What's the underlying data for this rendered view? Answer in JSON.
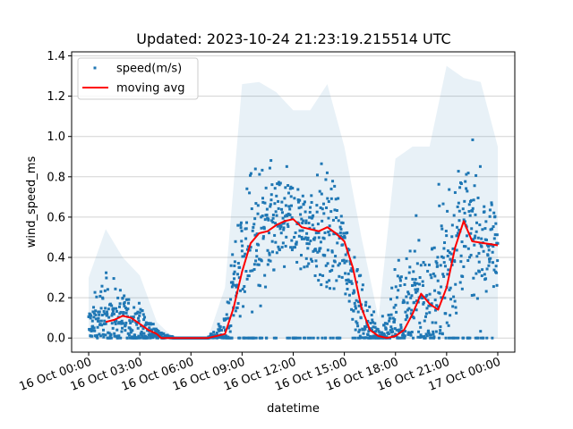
{
  "chart_data": {
    "type": "scatter",
    "title": "Updated: 2023-10-24 21:23:19.215514 UTC",
    "xlabel": "datetime",
    "ylabel": "wind_speed_ms",
    "xlim": [
      "2023-10-15T23:00:00",
      "2023-10-17T01:00:00"
    ],
    "ylim": [
      -0.07,
      1.42
    ],
    "x_ticks": [
      "2023-10-16T00:00:00",
      "2023-10-16T03:00:00",
      "2023-10-16T06:00:00",
      "2023-10-16T09:00:00",
      "2023-10-16T12:00:00",
      "2023-10-16T15:00:00",
      "2023-10-16T18:00:00",
      "2023-10-16T21:00:00",
      "2023-10-17T00:00:00"
    ],
    "x_tick_labels": [
      "16 Oct 00:00",
      "16 Oct 03:00",
      "16 Oct 06:00",
      "16 Oct 09:00",
      "16 Oct 12:00",
      "16 Oct 15:00",
      "16 Oct 18:00",
      "16 Oct 21:00",
      "17 Oct 00:00"
    ],
    "y_ticks": [
      0.0,
      0.2,
      0.4,
      0.6,
      0.8,
      1.0,
      1.2,
      1.4
    ],
    "y_tick_labels": [
      "0.0",
      "0.2",
      "0.4",
      "0.6",
      "0.8",
      "1.0",
      "1.2",
      "1.4"
    ],
    "grid": "horizontal",
    "legend_position": "upper-left",
    "series": [
      {
        "name": "speed(m/s)",
        "kind": "scatter",
        "color": "#1f77b4",
        "x": [
          "2023-10-16T00:00:00",
          "2023-10-16T01:00:00",
          "2023-10-16T02:00:00",
          "2023-10-16T03:00:00",
          "2023-10-16T04:00:00",
          "2023-10-16T05:00:00",
          "2023-10-16T06:00:00",
          "2023-10-16T07:00:00",
          "2023-10-16T08:00:00",
          "2023-10-16T09:00:00",
          "2023-10-16T10:00:00",
          "2023-10-16T11:00:00",
          "2023-10-16T12:00:00",
          "2023-10-16T13:00:00",
          "2023-10-16T14:00:00",
          "2023-10-16T15:00:00",
          "2023-10-16T16:00:00",
          "2023-10-16T17:00:00",
          "2023-10-16T18:00:00",
          "2023-10-16T19:00:00",
          "2023-10-16T20:00:00",
          "2023-10-16T21:00:00",
          "2023-10-16T22:00:00",
          "2023-10-16T23:00:00",
          "2023-10-17T00:00:00"
        ],
        "y": [
          0.05,
          0.12,
          0.1,
          0.06,
          0.02,
          0.0,
          0.0,
          0.0,
          0.02,
          0.4,
          0.5,
          0.55,
          0.58,
          0.54,
          0.52,
          0.45,
          0.1,
          0.01,
          0.05,
          0.22,
          0.15,
          0.38,
          0.55,
          0.47,
          0.45
        ],
        "y_min": [
          0.0,
          0.0,
          0.0,
          0.0,
          0.0,
          0.0,
          0.0,
          0.0,
          0.0,
          0.0,
          0.0,
          0.0,
          0.0,
          0.0,
          0.0,
          0.0,
          0.0,
          0.0,
          0.0,
          0.0,
          0.0,
          0.0,
          0.0,
          0.0,
          0.0
        ],
        "y_max": [
          0.3,
          0.54,
          0.4,
          0.31,
          0.08,
          0.0,
          0.0,
          0.0,
          0.25,
          1.26,
          1.27,
          1.22,
          1.13,
          1.13,
          1.26,
          0.95,
          0.5,
          0.1,
          0.89,
          0.95,
          0.95,
          1.35,
          1.29,
          1.27,
          0.95
        ]
      },
      {
        "name": "moving avg",
        "kind": "line",
        "color": "#ff0000",
        "x": [
          "2023-10-16T01:00:00",
          "2023-10-16T01:30:00",
          "2023-10-16T02:00:00",
          "2023-10-16T02:30:00",
          "2023-10-16T03:00:00",
          "2023-10-16T03:30:00",
          "2023-10-16T04:00:00",
          "2023-10-16T04:15:00",
          "2023-10-16T05:00:00",
          "2023-10-16T06:00:00",
          "2023-10-16T07:00:00",
          "2023-10-16T08:00:00",
          "2023-10-16T08:30:00",
          "2023-10-16T09:00:00",
          "2023-10-16T09:30:00",
          "2023-10-16T10:00:00",
          "2023-10-16T10:30:00",
          "2023-10-16T11:00:00",
          "2023-10-16T11:30:00",
          "2023-10-16T12:00:00",
          "2023-10-16T12:30:00",
          "2023-10-16T13:00:00",
          "2023-10-16T13:30:00",
          "2023-10-16T14:00:00",
          "2023-10-16T14:30:00",
          "2023-10-16T15:00:00",
          "2023-10-16T15:30:00",
          "2023-10-16T16:00:00",
          "2023-10-16T16:30:00",
          "2023-10-16T17:00:00",
          "2023-10-16T17:30:00",
          "2023-10-16T18:00:00",
          "2023-10-16T18:30:00",
          "2023-10-16T19:00:00",
          "2023-10-16T19:30:00",
          "2023-10-16T20:00:00",
          "2023-10-16T20:30:00",
          "2023-10-16T21:00:00",
          "2023-10-16T21:30:00",
          "2023-10-16T22:00:00",
          "2023-10-16T22:30:00",
          "2023-10-17T00:00:00"
        ],
        "y": [
          0.08,
          0.09,
          0.11,
          0.1,
          0.07,
          0.04,
          0.02,
          0.0,
          0.0,
          0.0,
          0.0,
          0.02,
          0.15,
          0.33,
          0.47,
          0.52,
          0.53,
          0.56,
          0.58,
          0.59,
          0.55,
          0.54,
          0.53,
          0.55,
          0.52,
          0.48,
          0.35,
          0.15,
          0.04,
          0.01,
          0.0,
          0.01,
          0.04,
          0.12,
          0.22,
          0.17,
          0.14,
          0.25,
          0.45,
          0.58,
          0.48,
          0.46
        ]
      }
    ]
  }
}
